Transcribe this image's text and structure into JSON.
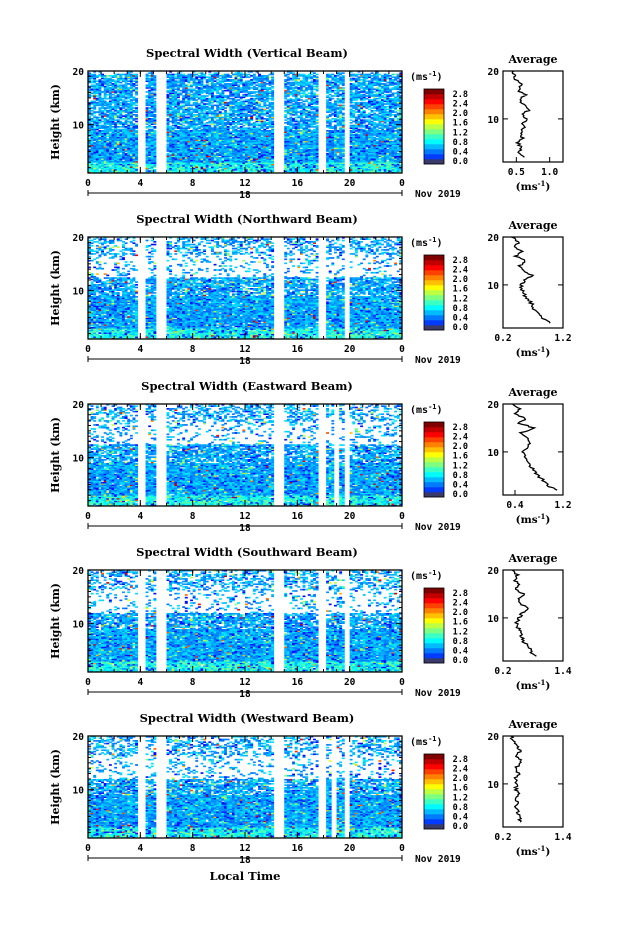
{
  "figure": {
    "xlabel": "Local Time",
    "date_label": "Nov 2019",
    "day_label": "18"
  },
  "colorbar": {
    "unit_prefix": "(ms",
    "unit_exp": "-1",
    "unit_suffix": ")",
    "ticks": [
      "0.0",
      "0.4",
      "0.8",
      "1.2",
      "1.6",
      "2.0",
      "2.4",
      "2.8"
    ]
  },
  "chart_data": [
    {
      "type": "heatmap",
      "title": "Spectral Width (Vertical Beam)",
      "ylabel": "Height (km)",
      "xlim": [
        0,
        24
      ],
      "ylim": [
        1,
        20
      ],
      "xticks": [
        "0",
        "4",
        "8",
        "12",
        "16",
        "20",
        "0"
      ],
      "yticks": [
        "10",
        "20"
      ],
      "clim": [
        0,
        3.0
      ],
      "top_km": 19.5,
      "gaps_h": [
        [
          3.9,
          4.3
        ],
        [
          5.2,
          5.9
        ],
        [
          14.2,
          14.9
        ],
        [
          17.7,
          18.2
        ],
        [
          19.6,
          20.0
        ]
      ],
      "profile": {
        "title": "Average",
        "xlabel_prefix": "(ms",
        "xlabel_exp": "-1",
        "xlabel_suffix": ")",
        "xlim": [
          0.3,
          1.2
        ],
        "xticks": [
          "0.5",
          "1.0"
        ],
        "yticks": [
          "10",
          "20"
        ],
        "height_km": [
          2,
          3,
          4,
          5,
          6,
          7,
          8,
          9,
          10,
          11,
          12,
          13,
          14,
          15,
          16,
          17,
          18,
          19,
          20
        ],
        "width_ms": [
          0.62,
          0.55,
          0.58,
          0.52,
          0.6,
          0.55,
          0.62,
          0.58,
          0.66,
          0.6,
          0.7,
          0.62,
          0.55,
          0.64,
          0.52,
          0.58,
          0.5,
          0.48,
          0.46
        ]
      }
    },
    {
      "type": "heatmap",
      "title": "Spectral Width (Northward Beam)",
      "ylabel": "Height (km)",
      "xlim": [
        0,
        24
      ],
      "ylim": [
        1,
        20
      ],
      "xticks": [
        "0",
        "4",
        "8",
        "12",
        "16",
        "20",
        "0"
      ],
      "yticks": [
        "10",
        "20"
      ],
      "clim": [
        0,
        3.0
      ],
      "top_km": 12.5,
      "gaps_h": [
        [
          3.9,
          4.3
        ],
        [
          5.2,
          5.9
        ],
        [
          14.2,
          14.9
        ],
        [
          17.7,
          18.2
        ],
        [
          19.6,
          20.0
        ]
      ],
      "profile": {
        "title": "Average",
        "xlabel_prefix": "(ms",
        "xlabel_exp": "-1",
        "xlabel_suffix": ")",
        "xlim": [
          0.2,
          1.2
        ],
        "xticks": [
          "0.2",
          "1.2"
        ],
        "yticks": [
          "10",
          "20"
        ],
        "height_km": [
          2,
          3,
          4,
          5,
          6,
          7,
          8,
          9,
          10,
          11,
          12,
          13,
          14,
          15,
          16,
          17,
          18,
          19,
          20
        ],
        "width_ms": [
          0.98,
          0.85,
          0.82,
          0.72,
          0.68,
          0.62,
          0.55,
          0.52,
          0.5,
          0.56,
          0.68,
          0.52,
          0.48,
          0.58,
          0.42,
          0.52,
          0.38,
          0.46,
          0.34
        ]
      }
    },
    {
      "type": "heatmap",
      "title": "Spectral Width (Eastward Beam)",
      "ylabel": "Height (km)",
      "xlim": [
        0,
        24
      ],
      "ylim": [
        1,
        20
      ],
      "xticks": [
        "0",
        "4",
        "8",
        "12",
        "16",
        "20",
        "0"
      ],
      "yticks": [
        "10",
        "20"
      ],
      "clim": [
        0,
        3.0
      ],
      "top_km": 12.5,
      "gaps_h": [
        [
          3.9,
          4.3
        ],
        [
          5.2,
          5.9
        ],
        [
          14.2,
          14.9
        ],
        [
          17.7,
          18.2
        ],
        [
          18.8,
          19.2
        ],
        [
          19.6,
          20.0
        ]
      ],
      "profile": {
        "title": "Average",
        "xlabel_prefix": "(ms",
        "xlabel_exp": "-1",
        "xlabel_suffix": ")",
        "xlim": [
          0.2,
          1.2
        ],
        "xticks": [
          "0.4",
          "1.2"
        ],
        "yticks": [
          "10",
          "20"
        ],
        "height_km": [
          2,
          3,
          4,
          5,
          6,
          7,
          8,
          9,
          10,
          11,
          12,
          13,
          14,
          15,
          16,
          17,
          18,
          19,
          20
        ],
        "width_ms": [
          1.08,
          0.95,
          0.88,
          0.78,
          0.72,
          0.66,
          0.6,
          0.56,
          0.54,
          0.6,
          0.66,
          0.58,
          0.5,
          0.72,
          0.46,
          0.58,
          0.4,
          0.48,
          0.36
        ]
      }
    },
    {
      "type": "heatmap",
      "title": "Spectral Width (Southward Beam)",
      "ylabel": "Height (km)",
      "xlim": [
        0,
        24
      ],
      "ylim": [
        1,
        20
      ],
      "xticks": [
        "0",
        "4",
        "8",
        "12",
        "16",
        "20",
        "0"
      ],
      "yticks": [
        "10",
        "20"
      ],
      "clim": [
        0,
        3.0
      ],
      "top_km": 12.0,
      "gaps_h": [
        [
          3.9,
          4.3
        ],
        [
          5.2,
          5.9
        ],
        [
          14.2,
          14.9
        ],
        [
          17.7,
          18.2
        ],
        [
          19.6,
          20.0
        ]
      ],
      "profile": {
        "title": "Average",
        "xlabel_prefix": "(ms",
        "xlabel_exp": "-1",
        "xlabel_suffix": ")",
        "xlim": [
          0.2,
          1.4
        ],
        "xticks": [
          "0.2",
          "1.4"
        ],
        "yticks": [
          "10",
          "20"
        ],
        "height_km": [
          2,
          3,
          4,
          5,
          6,
          7,
          8,
          9,
          10,
          11,
          12,
          13,
          14,
          15,
          16,
          17,
          18,
          19,
          20
        ],
        "width_ms": [
          0.85,
          0.75,
          0.72,
          0.62,
          0.58,
          0.55,
          0.5,
          0.48,
          0.52,
          0.58,
          0.72,
          0.55,
          0.48,
          0.62,
          0.45,
          0.55,
          0.42,
          0.5,
          0.38
        ]
      }
    },
    {
      "type": "heatmap",
      "title": "Spectral Width (Westward Beam)",
      "ylabel": "Height (km)",
      "xlim": [
        0,
        24
      ],
      "ylim": [
        1,
        20
      ],
      "xticks": [
        "0",
        "4",
        "8",
        "12",
        "16",
        "20",
        "0"
      ],
      "yticks": [
        "10",
        "20"
      ],
      "clim": [
        0,
        3.0
      ],
      "top_km": 12.0,
      "gaps_h": [
        [
          3.9,
          4.3
        ],
        [
          5.2,
          5.9
        ],
        [
          14.2,
          14.9
        ],
        [
          17.7,
          18.2
        ],
        [
          18.6,
          19.0
        ],
        [
          19.6,
          20.0
        ]
      ],
      "profile": {
        "title": "Average",
        "xlabel_prefix": "(ms",
        "xlabel_exp": "-1",
        "xlabel_suffix": ")",
        "xlim": [
          0.2,
          1.4
        ],
        "xticks": [
          "0.2",
          "1.4"
        ],
        "yticks": [
          "10",
          "20"
        ],
        "height_km": [
          2,
          3,
          4,
          5,
          6,
          7,
          8,
          9,
          10,
          11,
          12,
          13,
          14,
          15,
          16,
          17,
          18,
          19,
          20
        ],
        "width_ms": [
          0.55,
          0.52,
          0.5,
          0.46,
          0.48,
          0.44,
          0.5,
          0.46,
          0.48,
          0.44,
          0.52,
          0.46,
          0.5,
          0.58,
          0.45,
          0.55,
          0.48,
          0.4,
          0.36
        ]
      }
    }
  ]
}
